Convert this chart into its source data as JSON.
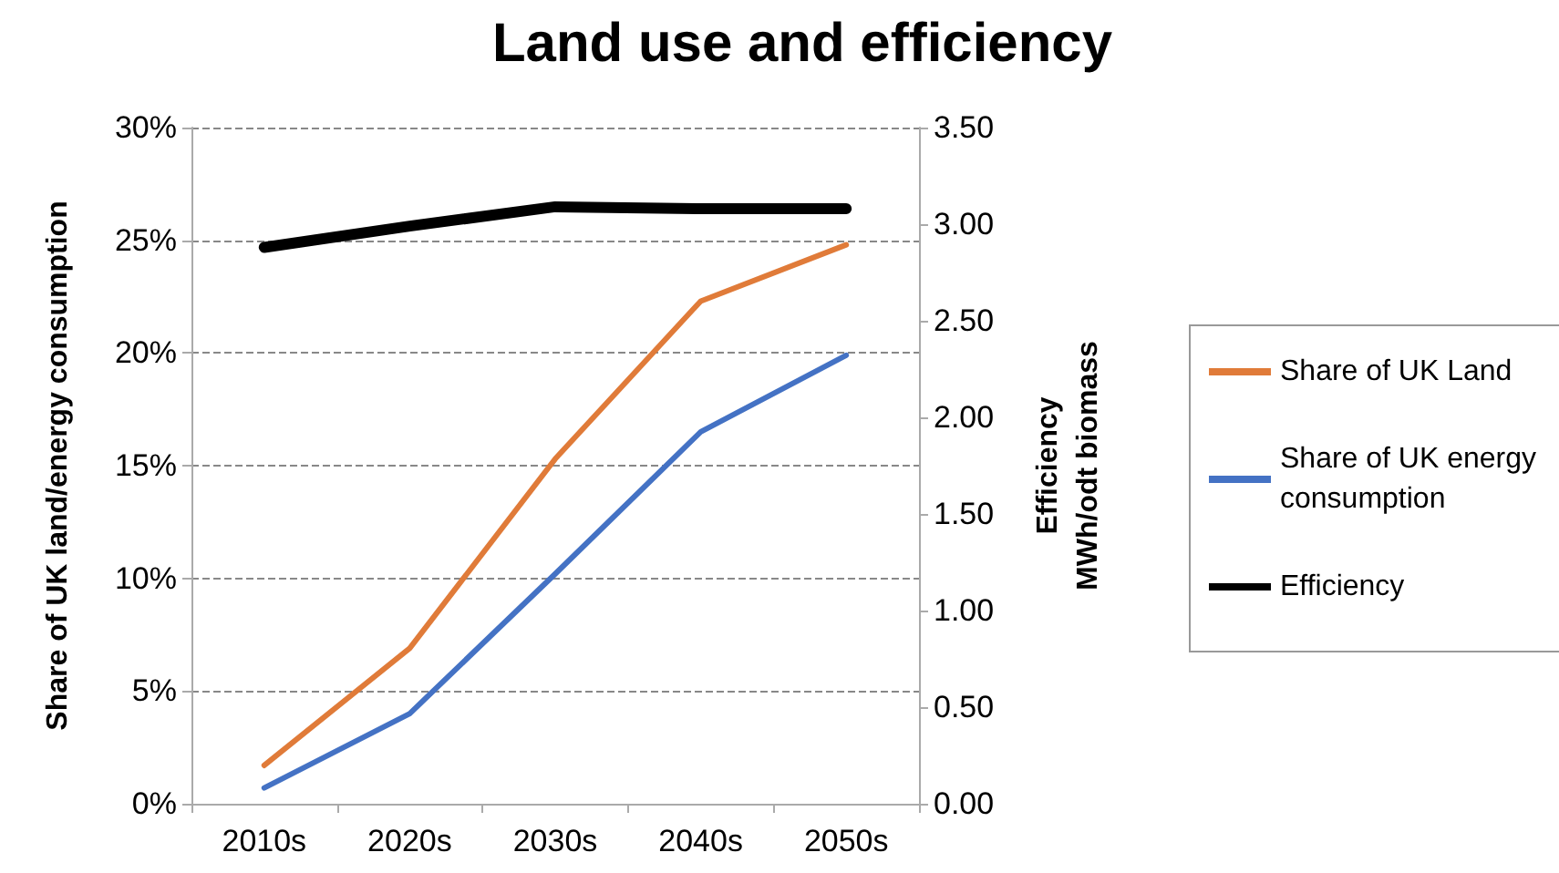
{
  "chart_data": {
    "type": "line",
    "title": "Land use and efficiency",
    "ylabel": "Share of UK land/energy consumption",
    "y2label": "Efficiency\nMWh/odt biomass",
    "categories": [
      "2010s",
      "2020s",
      "2030s",
      "2040s",
      "2050s"
    ],
    "series": [
      {
        "name": "Share of UK Land",
        "color": "#e07b39",
        "values": [
          1.7,
          6.9,
          15.3,
          22.3,
          24.8
        ]
      },
      {
        "name": "Share of UK energy consumption",
        "color": "#4472c4",
        "values": [
          0.7,
          4.0,
          10.2,
          16.5,
          19.9
        ]
      },
      {
        "name": "Efficiency",
        "color": "#000000",
        "axis": "y2",
        "values": [
          2.88,
          2.99,
          3.09,
          3.08,
          3.08
        ]
      }
    ],
    "ylim": [
      0,
      30
    ],
    "yticks": [
      {
        "value": 0,
        "label": "0%"
      },
      {
        "value": 5,
        "label": "5%"
      },
      {
        "value": 10,
        "label": "10%"
      },
      {
        "value": 15,
        "label": "15%"
      },
      {
        "value": 20,
        "label": "20%"
      },
      {
        "value": 25,
        "label": "25%"
      },
      {
        "value": 30,
        "label": "30%"
      }
    ],
    "y2lim": [
      0,
      3.5
    ],
    "y2ticks": [
      {
        "value": 0,
        "label": "0.00"
      },
      {
        "value": 0.5,
        "label": "0.50"
      },
      {
        "value": 1,
        "label": "1.00"
      },
      {
        "value": 1.5,
        "label": "1.50"
      },
      {
        "value": 2,
        "label": "2.00"
      },
      {
        "value": 2.5,
        "label": "2.50"
      },
      {
        "value": 3,
        "label": "3.00"
      },
      {
        "value": 3.5,
        "label": "3.50"
      }
    ],
    "grid": "y",
    "legend": "right",
    "marker": "none",
    "line_style": "solid"
  }
}
